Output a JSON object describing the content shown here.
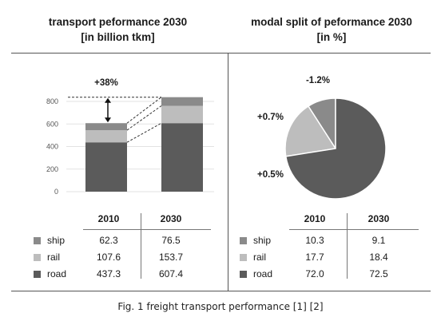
{
  "left_title": {
    "line1": "transport peformance 2030",
    "line2": "[in billion tkm]"
  },
  "right_title": {
    "line1": "modal split of peformance 2030",
    "line2": "[in %]"
  },
  "caption": "Fig. 1 freight transport performance [1] [2]",
  "colors": {
    "ship": "#8a8a8a",
    "rail": "#bdbdbd",
    "road": "#5b5b5b"
  },
  "chart_data": [
    {
      "type": "bar",
      "stacked": true,
      "categories": [
        "2010",
        "2030"
      ],
      "series": [
        {
          "name": "road",
          "values": [
            437.3,
            607.4
          ]
        },
        {
          "name": "rail",
          "values": [
            107.6,
            153.7
          ]
        },
        {
          "name": "ship",
          "values": [
            62.3,
            76.5
          ]
        }
      ],
      "yticks": [
        "0",
        "200",
        "400",
        "600",
        "800"
      ],
      "ylim": [
        0,
        800
      ],
      "annotation": "+38%",
      "table": {
        "headers": [
          "2010",
          "2030"
        ],
        "rows": [
          {
            "label": "ship",
            "values": [
              "62.3",
              "76.5"
            ]
          },
          {
            "label": "rail",
            "values": [
              "107.6",
              "153.7"
            ]
          },
          {
            "label": "road",
            "values": [
              "437.3",
              "607.4"
            ]
          }
        ]
      }
    },
    {
      "type": "pie",
      "slices": [
        {
          "name": "ship",
          "value": 9.1,
          "change": "-1.2%"
        },
        {
          "name": "rail",
          "value": 18.4,
          "change": "+0.7%"
        },
        {
          "name": "road",
          "value": 72.5,
          "change": "+0.5%"
        }
      ],
      "table": {
        "headers": [
          "2010",
          "2030"
        ],
        "rows": [
          {
            "label": "ship",
            "values": [
              "10.3",
              "9.1"
            ]
          },
          {
            "label": "rail",
            "values": [
              "17.7",
              "18.4"
            ]
          },
          {
            "label": "road",
            "values": [
              "72.0",
              "72.5"
            ]
          }
        ]
      }
    }
  ]
}
